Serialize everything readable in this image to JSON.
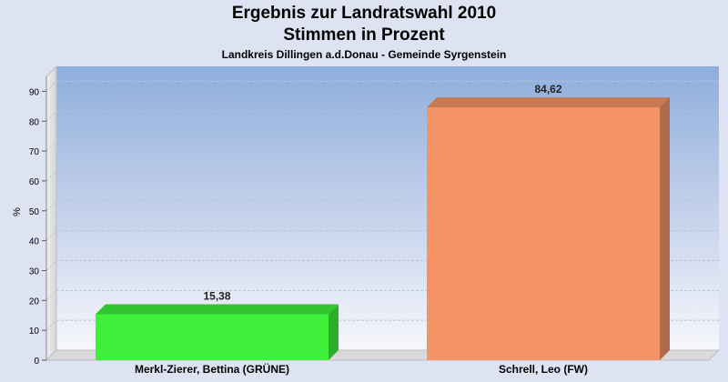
{
  "chart_data": {
    "type": "bar",
    "title": "Ergebnis zur Landratswahl 2010",
    "subtitle": "Stimmen in Prozent",
    "caption": "Landkreis Dillingen a.d.Donau - Gemeinde Syrgenstein",
    "ylabel": "%",
    "ylim": [
      0,
      95
    ],
    "yticks": [
      0,
      10,
      20,
      30,
      40,
      50,
      60,
      70,
      80,
      90
    ],
    "grid": true,
    "categories": [
      "Merkl-Zierer, Bettina (GRÜNE)",
      "Schrell, Leo (FW)"
    ],
    "values": [
      15.38,
      84.62
    ],
    "value_labels": [
      "15,38",
      "84,62"
    ],
    "colors": [
      "#3ef03a",
      "#f39366"
    ]
  }
}
